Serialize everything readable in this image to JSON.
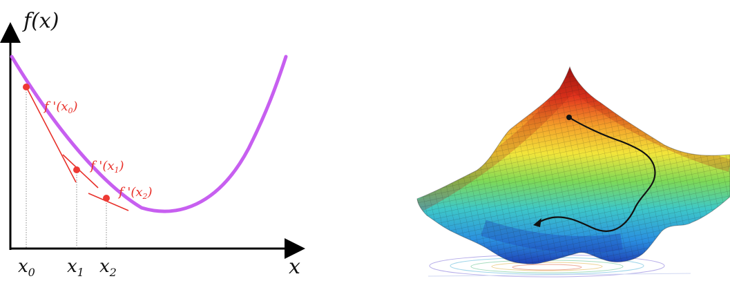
{
  "left_plot": {
    "y_axis_label": "f(x)",
    "x_axis_label": "x",
    "derivative_labels": [
      {
        "base": "f '(x",
        "sub": "0",
        "close": ")"
      },
      {
        "base": "f '(x",
        "sub": "1",
        "close": ")"
      },
      {
        "base": "f '(x",
        "sub": "2",
        "close": ")"
      }
    ],
    "x_ticks": [
      {
        "base": "x",
        "sub": "0"
      },
      {
        "base": "x",
        "sub": "1"
      },
      {
        "base": "x",
        "sub": "2"
      }
    ],
    "colors": {
      "curve": "#c75ff0",
      "tangent": "#e8302a",
      "point": "#ee3a34",
      "axis": "#000000"
    }
  },
  "right_plot": {
    "description_type": "3d-loss-surface",
    "colors": {
      "path": "#111111",
      "colormap": [
        "#1e3fb4",
        "#2a8fe0",
        "#3ec8c8",
        "#7ed957",
        "#f2e53a",
        "#f4a12a",
        "#e2341d",
        "#9a1010"
      ]
    }
  }
}
